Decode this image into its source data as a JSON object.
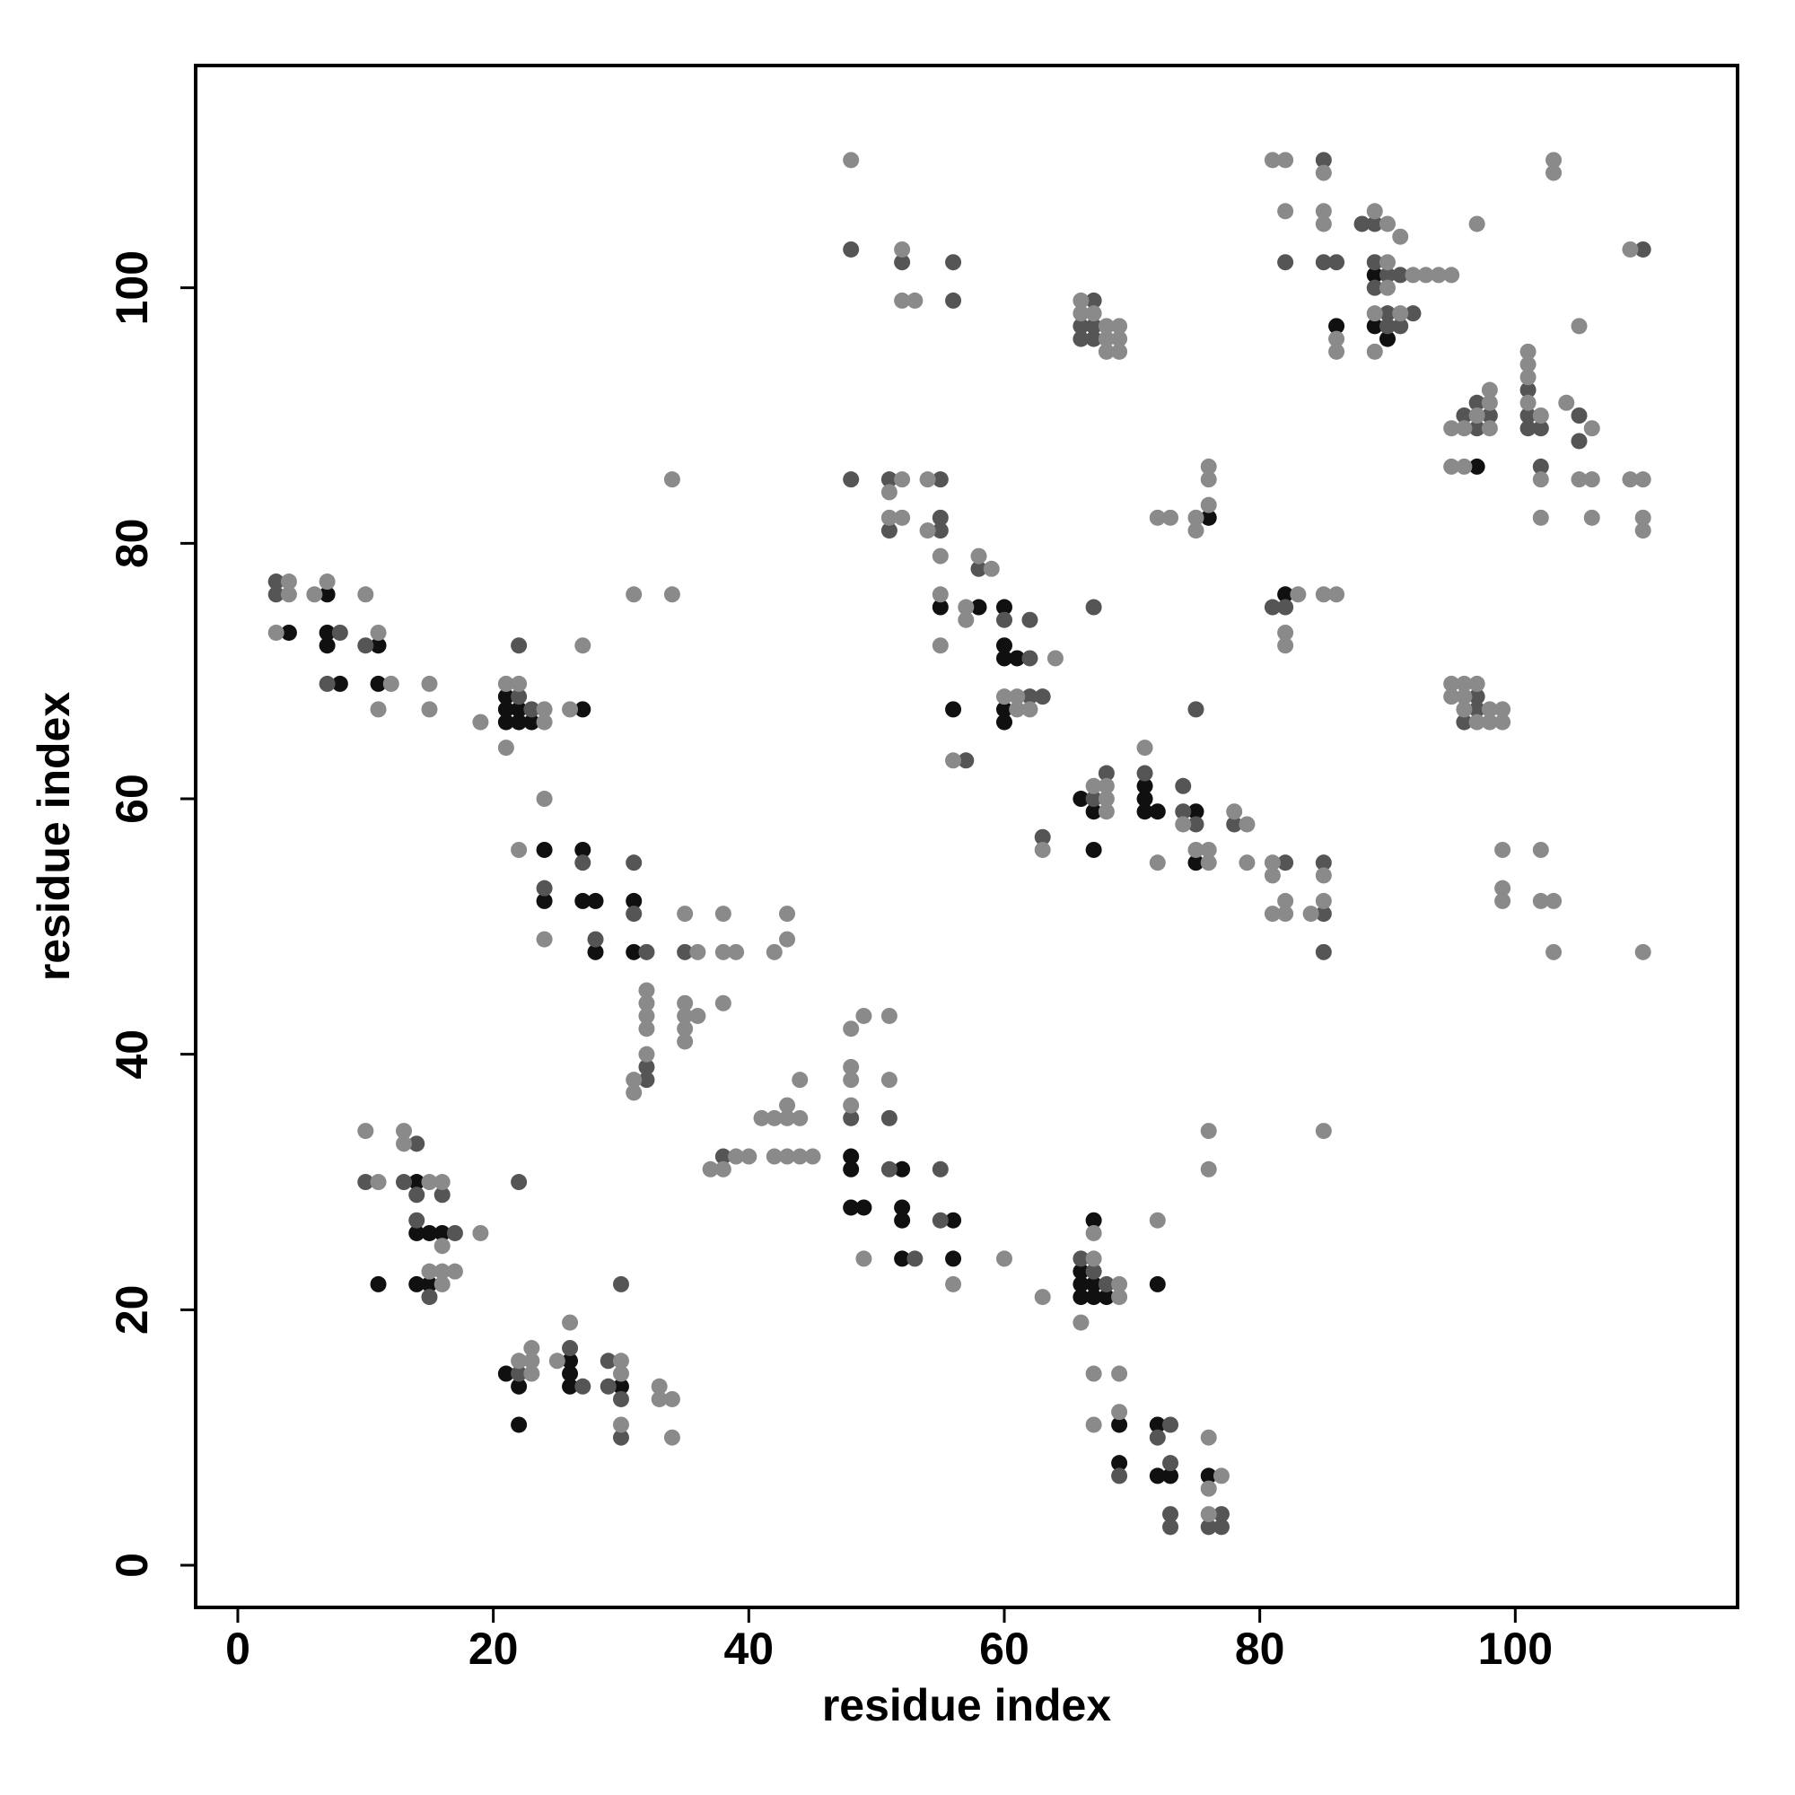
{
  "chart_data": {
    "type": "scatter",
    "x_label": "residue index",
    "y_label": "residue index",
    "xlim": [
      -3.3,
      117.4
    ],
    "ylim": [
      -3.3,
      117.4
    ],
    "xticks": [
      0,
      20,
      40,
      60,
      80,
      100
    ],
    "yticks": [
      0,
      20,
      40,
      60,
      80,
      100
    ],
    "grid": false,
    "series": [
      {
        "color": "#101010",
        "x": [
          7,
          4,
          7,
          7,
          11,
          8,
          11,
          21,
          21,
          22,
          21,
          22,
          23,
          27,
          24,
          27,
          24,
          27,
          28,
          28,
          31,
          31,
          14,
          14,
          15,
          16,
          11,
          14,
          15,
          26,
          21,
          26,
          22,
          26,
          30,
          22,
          48,
          48,
          52,
          48,
          49,
          52,
          52,
          56,
          52,
          56,
          67,
          66,
          66,
          67,
          72,
          66,
          67,
          68,
          69,
          72,
          69,
          72,
          73,
          76,
          71,
          66,
          71,
          67,
          71,
          72,
          75,
          67,
          75,
          55,
          58,
          60,
          60,
          60,
          61,
          56,
          60,
          60,
          76,
          82,
          89,
          86,
          89,
          90,
          97
        ],
        "y": [
          76,
          73,
          73,
          72,
          72,
          69,
          69,
          68,
          67,
          67,
          66,
          66,
          66,
          67,
          56,
          56,
          52,
          52,
          52,
          48,
          52,
          48,
          30,
          26,
          26,
          26,
          22,
          22,
          22,
          16,
          15,
          15,
          14,
          14,
          14,
          11,
          32,
          31,
          31,
          28,
          28,
          28,
          27,
          27,
          24,
          24,
          27,
          23,
          22,
          22,
          22,
          21,
          21,
          21,
          11,
          11,
          8,
          7,
          7,
          7,
          61,
          60,
          60,
          59,
          59,
          59,
          59,
          56,
          55,
          75,
          75,
          75,
          72,
          71,
          71,
          67,
          67,
          66,
          82,
          76,
          101,
          97,
          97,
          96,
          86
        ]
      },
      {
        "color": "#555555",
        "x": [
          3,
          3,
          8,
          10,
          7,
          22,
          23,
          22,
          27,
          24,
          28,
          31,
          31,
          32,
          35,
          32,
          32,
          14,
          10,
          13,
          14,
          16,
          14,
          17,
          15,
          22,
          26,
          29,
          22,
          27,
          29,
          30,
          30,
          30,
          38,
          48,
          51,
          51,
          55,
          55,
          53,
          66,
          67,
          68,
          73,
          72,
          73,
          69,
          73,
          77,
          73,
          76,
          77,
          68,
          71,
          74,
          67,
          74,
          75,
          78,
          63,
          82,
          85,
          85,
          85,
          75,
          58,
          60,
          62,
          62,
          62,
          63,
          57,
          67,
          48,
          52,
          56,
          56,
          48,
          51,
          55,
          55,
          51,
          55,
          67,
          66,
          67,
          66,
          67,
          81,
          82,
          85,
          88,
          89,
          82,
          85,
          86,
          89,
          90,
          91,
          89,
          90,
          92,
          90,
          91,
          101,
          97,
          96,
          98,
          101,
          105,
          97,
          101,
          102,
          105,
          102,
          110,
          97,
          97,
          96
        ],
        "y": [
          77,
          76,
          73,
          72,
          69,
          68,
          67,
          72,
          55,
          53,
          49,
          55,
          51,
          48,
          48,
          39,
          38,
          33,
          30,
          30,
          29,
          29,
          27,
          26,
          21,
          30,
          17,
          16,
          15,
          14,
          14,
          13,
          10,
          22,
          32,
          35,
          35,
          31,
          31,
          27,
          24,
          24,
          23,
          22,
          11,
          10,
          8,
          7,
          4,
          4,
          3,
          3,
          3,
          62,
          62,
          61,
          60,
          59,
          58,
          58,
          57,
          55,
          55,
          51,
          48,
          67,
          78,
          74,
          74,
          71,
          68,
          68,
          63,
          75,
          103,
          102,
          102,
          99,
          85,
          85,
          85,
          82,
          81,
          81,
          99,
          97,
          97,
          96,
          96,
          75,
          75,
          110,
          105,
          105,
          102,
          102,
          102,
          102,
          101,
          101,
          100,
          98,
          98,
          97,
          97,
          92,
          91,
          90,
          90,
          90,
          90,
          89,
          89,
          89,
          88,
          86,
          103,
          68,
          67,
          66
        ]
      },
      {
        "color": "#8a8a8a",
        "x": [
          4,
          4,
          6,
          7,
          3,
          10,
          11,
          12,
          11,
          15,
          15,
          19,
          21,
          22,
          24,
          24,
          21,
          26,
          27,
          24,
          22,
          24,
          35,
          36,
          38,
          38,
          39,
          42,
          43,
          43,
          32,
          32,
          32,
          32,
          32,
          31,
          31,
          35,
          35,
          36,
          35,
          35,
          38,
          31,
          34,
          34,
          10,
          13,
          13,
          11,
          15,
          16,
          19,
          16,
          15,
          16,
          17,
          16,
          26,
          23,
          22,
          23,
          25,
          30,
          23,
          30,
          33,
          33,
          34,
          30,
          34,
          37,
          38,
          39,
          40,
          41,
          42,
          43,
          43,
          44,
          42,
          43,
          44,
          45,
          44,
          48,
          49,
          51,
          48,
          48,
          51,
          48,
          49,
          56,
          60,
          67,
          67,
          69,
          72,
          63,
          69,
          66,
          67,
          69,
          69,
          67,
          76,
          77,
          76,
          76,
          76,
          76,
          71,
          67,
          68,
          68,
          68,
          78,
          74,
          79,
          63,
          75,
          76,
          72,
          76,
          79,
          81,
          81,
          85,
          82,
          85,
          81,
          82,
          84,
          85,
          58,
          59,
          55,
          57,
          57,
          55,
          64,
          60,
          61,
          61,
          62,
          56,
          48,
          52,
          52,
          53,
          52,
          54,
          51,
          51,
          52,
          54,
          55,
          66,
          66,
          67,
          68,
          69,
          68,
          69,
          68,
          69,
          72,
          73,
          75,
          75,
          76,
          76,
          76,
          83,
          85,
          86,
          82,
          82,
          81,
          82,
          85,
          82,
          85,
          89,
          85,
          90,
          91,
          90,
          92,
          93,
          94,
          95,
          90,
          89,
          91,
          86,
          86,
          89,
          97,
          101,
          101,
          101,
          98,
          98,
          101,
          104,
          97,
          102,
          95,
          96,
          98,
          106,
          95,
          96,
          102,
          105,
          106,
          109,
          110,
          102,
          106,
          110,
          110,
          103,
          103,
          109,
          105,
          95,
          96,
          97,
          95,
          96,
          96,
          98,
          99,
          97,
          98,
          99,
          99,
          102,
          99,
          99,
          102,
          103,
          103,
          110
        ],
        "y": [
          77,
          76,
          76,
          77,
          73,
          76,
          73,
          69,
          67,
          69,
          67,
          66,
          69,
          69,
          67,
          66,
          64,
          67,
          72,
          60,
          56,
          49,
          51,
          48,
          51,
          48,
          48,
          48,
          49,
          51,
          45,
          44,
          43,
          42,
          40,
          38,
          37,
          44,
          43,
          43,
          42,
          41,
          44,
          76,
          76,
          85,
          34,
          34,
          33,
          30,
          30,
          30,
          26,
          25,
          23,
          23,
          23,
          22,
          19,
          17,
          16,
          16,
          16,
          16,
          15,
          15,
          14,
          13,
          13,
          11,
          10,
          31,
          31,
          32,
          32,
          35,
          35,
          36,
          35,
          35,
          32,
          32,
          32,
          32,
          38,
          42,
          43,
          43,
          39,
          38,
          38,
          36,
          24,
          22,
          24,
          26,
          24,
          22,
          27,
          21,
          21,
          19,
          15,
          15,
          12,
          11,
          10,
          7,
          6,
          4,
          34,
          31,
          64,
          61,
          61,
          60,
          59,
          59,
          58,
          58,
          56,
          56,
          56,
          55,
          55,
          55,
          55,
          54,
          54,
          52,
          52,
          51,
          51,
          51,
          34,
          79,
          78,
          76,
          75,
          74,
          72,
          71,
          68,
          68,
          67,
          67,
          63,
          110,
          103,
          99,
          99,
          85,
          85,
          84,
          82,
          82,
          81,
          79,
          99,
          98,
          98,
          97,
          97,
          96,
          96,
          95,
          95,
          82,
          82,
          82,
          81,
          83,
          85,
          86,
          76,
          76,
          76,
          73,
          72,
          110,
          110,
          109,
          106,
          106,
          106,
          105,
          105,
          104,
          102,
          101,
          101,
          101,
          101,
          100,
          98,
          98,
          96,
          95,
          95,
          105,
          95,
          94,
          93,
          92,
          91,
          91,
          91,
          90,
          90,
          89,
          89,
          89,
          89,
          86,
          86,
          85,
          85,
          85,
          85,
          85,
          82,
          82,
          82,
          81,
          110,
          109,
          103,
          97,
          69,
          69,
          69,
          68,
          68,
          67,
          67,
          67,
          66,
          66,
          66,
          56,
          56,
          53,
          52,
          52,
          52,
          48,
          48
        ]
      }
    ]
  }
}
